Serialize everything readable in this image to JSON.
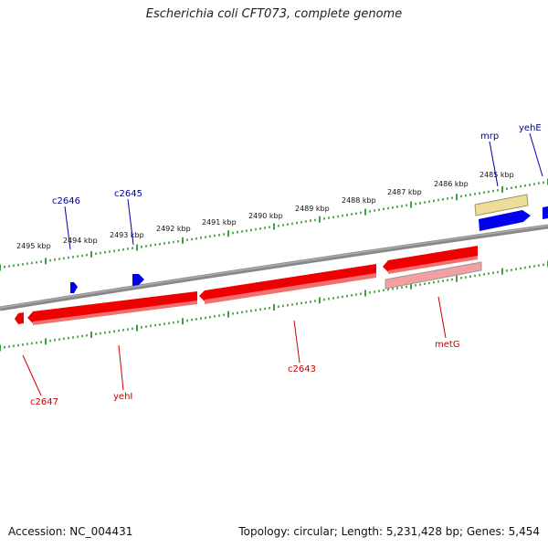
{
  "title": "Escherichia coli CFT073, complete genome",
  "footer": {
    "accession": "Accession: NC_004431",
    "summary": "Topology: circular; Length: 5,231,428 bp; Genes: 5,454"
  },
  "colors": {
    "backbone": "#777777",
    "tick": "#118811",
    "forward_gene": "#0000ee",
    "reverse_gene": "#ee0000",
    "reverse_gene_light": "#f08080",
    "pseudo_gene": "#eedd88",
    "fwd_label": "#000099",
    "rev_label": "#cc0000"
  },
  "scale_labels": [
    "2495 kbp",
    "2494 kbp",
    "2493 kbp",
    "2492 kbp",
    "2491 kbp",
    "2490 kbp",
    "2489 kbp",
    "2488 kbp",
    "2487 kbp",
    "2486 kbp",
    "2485 kbp"
  ],
  "forward_genes": [
    "c2646",
    "c2645",
    "mrp",
    "yehE"
  ],
  "reverse_genes": [
    "c2647",
    "yehI",
    "c2643",
    "metG"
  ]
}
